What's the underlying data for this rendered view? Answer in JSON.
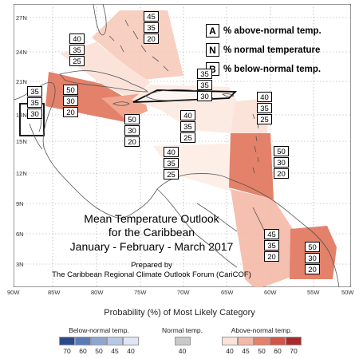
{
  "map": {
    "y_ticks": [
      "27N",
      "24N",
      "21N",
      "18N",
      "15N",
      "12N",
      "9N",
      "6N",
      "3N"
    ],
    "x_ticks": [
      "90W",
      "85W",
      "80W",
      "75W",
      "70W",
      "65W",
      "60W",
      "55W",
      "50W"
    ],
    "title_line1": "Mean Temperature Outlook",
    "title_line2": "for the Caribbean",
    "title_line3": "January - February - March 2017",
    "prepared_line1": "Prepared by",
    "prepared_line2": "The Caribbean Regional Climate Outlook Forum (CariCOF)"
  },
  "key": [
    {
      "letter": "A",
      "text": "% above-normal temp."
    },
    {
      "letter": "N",
      "text": "% normal temperature"
    },
    {
      "letter": "B",
      "text": "% below-normal temp."
    }
  ],
  "forecasts": [
    {
      "id": "bahamas",
      "A": "45",
      "N": "35",
      "B": "20"
    },
    {
      "id": "cuba-north",
      "A": "40",
      "N": "35",
      "B": "25"
    },
    {
      "id": "belize",
      "A": "35",
      "N": "35",
      "B": "30"
    },
    {
      "id": "western-caribbean",
      "A": "50",
      "N": "30",
      "B": "20"
    },
    {
      "id": "jamaica",
      "A": "50",
      "N": "30",
      "B": "20"
    },
    {
      "id": "hispaniola",
      "A": "35",
      "N": "35",
      "B": "30"
    },
    {
      "id": "puerto-rico",
      "A": "40",
      "N": "35",
      "B": "25"
    },
    {
      "id": "leeward-islands",
      "A": "40",
      "N": "35",
      "B": "25"
    },
    {
      "id": "windward-islands",
      "A": "50",
      "N": "30",
      "B": "20"
    },
    {
      "id": "abc-islands",
      "A": "40",
      "N": "35",
      "B": "25"
    },
    {
      "id": "guyana",
      "A": "45",
      "N": "35",
      "B": "20"
    },
    {
      "id": "suriname",
      "A": "50",
      "N": "30",
      "B": "20"
    }
  ],
  "legend": {
    "title": "Probability (%) of Most Likely Category",
    "below": {
      "label": "Below-normal temp.",
      "values": [
        "70",
        "60",
        "50",
        "45",
        "40"
      ],
      "colors": [
        "#2b4a8c",
        "#5b7ab8",
        "#8fa6d2",
        "#b9c8e6",
        "#dfe6f4"
      ]
    },
    "normal": {
      "label": "Normal temp.",
      "values": [
        "40"
      ],
      "colors": [
        "#c8cac8"
      ]
    },
    "above": {
      "label": "Above-normal temp.",
      "values": [
        "40",
        "45",
        "50",
        "60",
        "70"
      ],
      "colors": [
        "#fbe3da",
        "#f4b9a6",
        "#e3816a",
        "#cf5648",
        "#a82a2c"
      ]
    }
  },
  "colors": {
    "prob_40": "#fbe3da",
    "prob_45": "#f4b9a6",
    "prob_50": "#e3816a",
    "prob_normal_zone": "#fdf0ea",
    "coastline": "#555555",
    "zone_outline": "#000000"
  }
}
